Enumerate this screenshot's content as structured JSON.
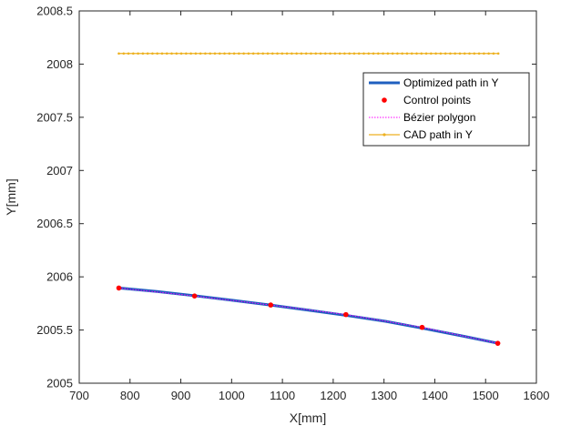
{
  "chart_data": {
    "type": "line",
    "xlabel": "X[mm]",
    "ylabel": "Y[mm]",
    "xlim": [
      700,
      1600
    ],
    "ylim": [
      2005,
      2008.5
    ],
    "xticks": [
      700,
      800,
      900,
      1000,
      1100,
      1200,
      1300,
      1400,
      1500,
      1600
    ],
    "yticks": [
      2005,
      2005.5,
      2006,
      2006.5,
      2007,
      2007.5,
      2008,
      2008.5
    ],
    "xtick_labels": [
      "700",
      "800",
      "900",
      "1000",
      "1100",
      "1200",
      "1300",
      "1400",
      "1500",
      "1600"
    ],
    "ytick_labels": [
      "2005",
      "2005.5",
      "2006",
      "2006.5",
      "2007",
      "2007.5",
      "2008",
      "2008.5"
    ],
    "grid": false,
    "box": true,
    "legend": {
      "placement": "upper-right",
      "entries": [
        "Optimized path in Y",
        "Control points",
        "Bézier polygon",
        "CAD path in Y"
      ]
    },
    "series": [
      {
        "name": "Optimized path in Y",
        "style": "line",
        "color": "#1f5fbf",
        "x": [
          778,
          853,
          928,
          1003,
          1078,
          1153,
          1228,
          1303,
          1378,
          1453,
          1525
        ],
        "y": [
          2005.895,
          2005.862,
          2005.822,
          2005.779,
          2005.734,
          2005.686,
          2005.636,
          2005.582,
          2005.515,
          2005.445,
          2005.375
        ]
      },
      {
        "name": "Control points",
        "style": "markers",
        "color": "#ff0000",
        "x": [
          778,
          927,
          1077,
          1225,
          1375,
          1524
        ],
        "y": [
          2005.895,
          2005.82,
          2005.735,
          2005.645,
          2005.525,
          2005.375
        ]
      },
      {
        "name": "Bézier polygon",
        "style": "dotted",
        "color": "#ff00ff",
        "x": [
          778,
          927,
          1077,
          1225,
          1375,
          1524
        ],
        "y": [
          2005.895,
          2005.82,
          2005.735,
          2005.645,
          2005.525,
          2005.375
        ]
      },
      {
        "name": "CAD path in Y",
        "style": "line-markers",
        "color": "#edb120",
        "x_start": 778,
        "x_end": 1525,
        "y": 2008.1,
        "marker_count": 80
      }
    ]
  }
}
